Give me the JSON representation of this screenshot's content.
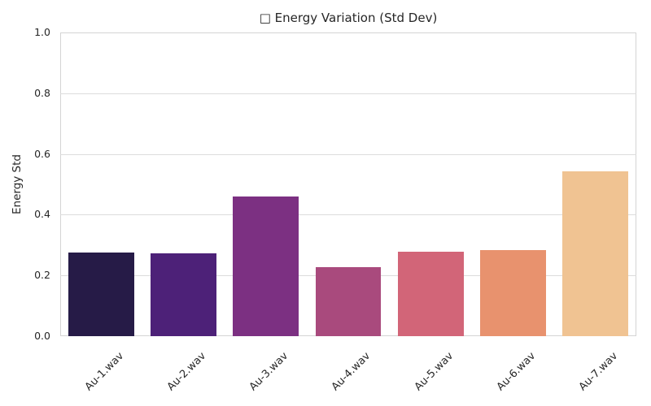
{
  "chart_data": {
    "type": "bar",
    "title": "□ Energy Variation (Std Dev)",
    "xlabel": "",
    "ylabel": "Energy Std",
    "categories": [
      "Au-1.wav",
      "Au-2.wav",
      "Au-3.wav",
      "Au-4.wav",
      "Au-5.wav",
      "Au-6.wav",
      "Au-7.wav"
    ],
    "values": [
      0.275,
      0.273,
      0.46,
      0.227,
      0.278,
      0.284,
      0.543
    ],
    "bar_colors": [
      "#261b47",
      "#4d2178",
      "#7c3082",
      "#a94a7d",
      "#d26578",
      "#e8926e",
      "#f0c392"
    ],
    "ylim": [
      0.0,
      1.0
    ],
    "yticks": [
      0.0,
      0.2,
      0.4,
      0.6,
      0.8,
      1.0
    ],
    "ytick_labels": [
      "0.0",
      "0.2",
      "0.4",
      "0.6",
      "0.8",
      "1.0"
    ],
    "x_tick_rotation_deg": 45,
    "grid": "horizontal",
    "legend_position": "none"
  },
  "colors": {
    "background": "#ffffff",
    "grid": "#dcdcdc",
    "axes_border": "#d4d4d4",
    "text": "#262626"
  }
}
